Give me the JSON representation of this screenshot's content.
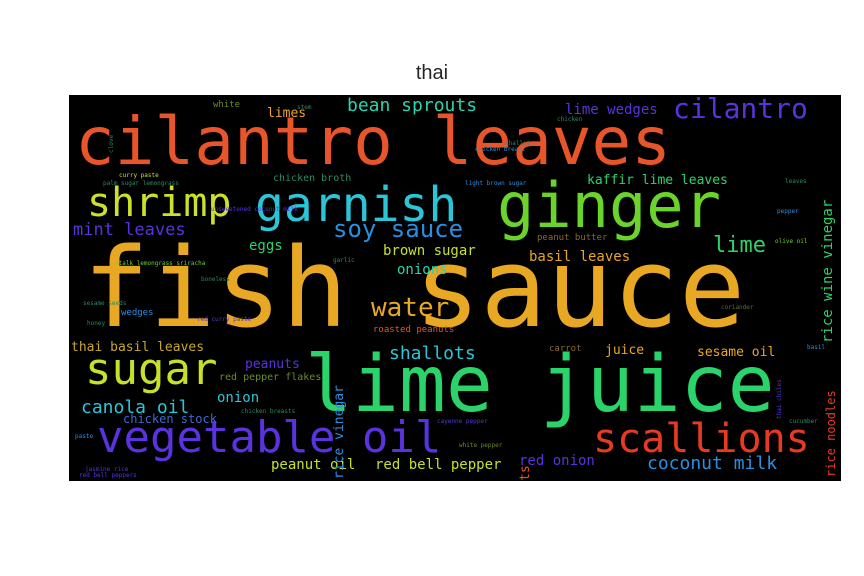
{
  "title": "thai",
  "words": [
    {
      "text": "fish sauce",
      "color": "#e8a823"
    },
    {
      "text": "cilantro leaves",
      "color": "#e8552a"
    },
    {
      "text": "lime juice",
      "color": "#2ad46a"
    },
    {
      "text": "ginger",
      "color": "#6ad42a"
    },
    {
      "text": "vegetable oil",
      "color": "#5a32e0"
    },
    {
      "text": "garnish",
      "color": "#2ac6d8"
    },
    {
      "text": "shrimp",
      "color": "#cde02a"
    },
    {
      "text": "scallions",
      "color": "#e83a23"
    },
    {
      "text": "sugar",
      "color": "#c8e02a"
    },
    {
      "text": "cilantro",
      "color": "#5a32e0"
    },
    {
      "text": "water",
      "color": "#e8a823"
    },
    {
      "text": "soy sauce",
      "color": "#2a8fe0"
    },
    {
      "text": "coconut milk",
      "color": "#2a8fe0"
    },
    {
      "text": "canola oil",
      "color": "#2ac6d8"
    },
    {
      "text": "bean sprouts",
      "color": "#2ad4b0"
    },
    {
      "text": "shallots",
      "color": "#2ac6d8"
    },
    {
      "text": "lime",
      "color": "#2ad46a"
    },
    {
      "text": "mint leaves",
      "color": "#5a32e0"
    },
    {
      "text": "lime wedges",
      "color": "#5a32e0"
    },
    {
      "text": "peanut oil",
      "color": "#c8e02a"
    },
    {
      "text": "red bell pepper",
      "color": "#c8e02a"
    },
    {
      "text": "red onion",
      "color": "#5a32e0"
    },
    {
      "text": "brown sugar",
      "color": "#c8e02a"
    },
    {
      "text": "basil leaves",
      "color": "#e8a823"
    },
    {
      "text": "onions",
      "color": "#2ad4b0"
    },
    {
      "text": "eggs",
      "color": "#2ad46a"
    },
    {
      "text": "limes",
      "color": "#e8a823"
    },
    {
      "text": "thai basil leaves",
      "color": "#c8a82a"
    },
    {
      "text": "peanuts",
      "color": "#5a32e0"
    },
    {
      "text": "onion",
      "color": "#2ac6d8"
    },
    {
      "text": "juice",
      "color": "#e8a823"
    },
    {
      "text": "sesame oil",
      "color": "#e8a823"
    },
    {
      "text": "kaffir lime leaves",
      "color": "#2ad46a"
    },
    {
      "text": "chicken broth",
      "color": "#2a8a6a"
    },
    {
      "text": "red pepper flakes",
      "color": "#6a8a2a"
    },
    {
      "text": "chicken stock",
      "color": "#3a6ad0"
    },
    {
      "text": "white",
      "color": "#6a8a2a"
    },
    {
      "text": "wedges",
      "color": "#2a8fe0"
    },
    {
      "text": "carrot",
      "color": "#8a6a2a"
    },
    {
      "text": "peanut butter",
      "color": "#8a6a2a"
    },
    {
      "text": "roasted peanuts",
      "color": "#e8552a"
    },
    {
      "text": "rice wine vinegar",
      "color": "#2ad46a"
    },
    {
      "text": "rice noodles",
      "color": "#e83a23"
    },
    {
      "text": "rice vinegar",
      "color": "#2a8fe0"
    },
    {
      "text": "carrots",
      "color": "#e8552a"
    },
    {
      "text": "curry paste",
      "color": "#c8e02a"
    },
    {
      "text": "palm sugar lemongrass",
      "color": "#2a8a6a"
    },
    {
      "text": "unsweetened coconut milk",
      "color": "#5a32e0"
    },
    {
      "text": "stalk lemongrass sriracha",
      "color": "#6ad42a"
    },
    {
      "text": "boneless",
      "color": "#2a8a6a"
    },
    {
      "text": "sesame seeds",
      "color": "#2a8a6a"
    },
    {
      "text": "red curry paste",
      "color": "#5a32e0"
    },
    {
      "text": "honey",
      "color": "#2a8a6a"
    },
    {
      "text": "chicken breasts",
      "color": "#2a8a6a"
    },
    {
      "text": "cayenne pepper",
      "color": "#5a32e0"
    },
    {
      "text": "jasmine rice",
      "color": "#5a32e0"
    },
    {
      "text": "red bell peppers",
      "color": "#5a32e0"
    },
    {
      "text": "paste",
      "color": "#2a8fe0"
    },
    {
      "text": "white pepper",
      "color": "#6a8a2a"
    },
    {
      "text": "light brown sugar",
      "color": "#2a8fe0"
    },
    {
      "text": "chicken breast",
      "color": "#2a8fe0"
    },
    {
      "text": "shallot",
      "color": "#2a8a6a"
    },
    {
      "text": "chicken",
      "color": "#2a8a6a"
    },
    {
      "text": "leaves",
      "color": "#2a8a6a"
    },
    {
      "text": "pepper",
      "color": "#2a8fe0"
    },
    {
      "text": "olive oil",
      "color": "#6ad42a"
    },
    {
      "text": "garlic",
      "color": "#2a8a6a"
    },
    {
      "text": "coriander",
      "color": "#6a6a2a"
    },
    {
      "text": "cucumber",
      "color": "#2a8a6a"
    },
    {
      "text": "basil",
      "color": "#2a8fe0"
    },
    {
      "text": "thai chiles",
      "color": "#5a32e0"
    },
    {
      "text": "clove",
      "color": "#2a8a6a"
    },
    {
      "text": "stem",
      "color": "#2a8a6a"
    }
  ]
}
